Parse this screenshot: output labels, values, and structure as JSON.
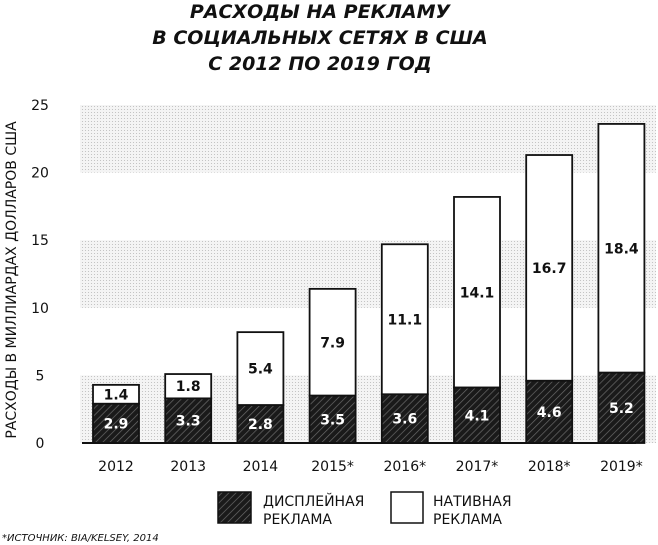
{
  "chart_data": {
    "type": "bar",
    "stacked": true,
    "title_lines": [
      "РАСХОДЫ НА РЕКЛАМУ",
      "В СОЦИАЛЬНЫХ СЕТЯХ В США",
      "С 2012 ПО 2019 ГОД"
    ],
    "ylabel": "РАСХОДЫ В МИЛЛИАРДАХ ДОЛЛАРОВ США",
    "xlabel": "",
    "ylim": [
      0,
      25
    ],
    "yticks": [
      "0",
      "5",
      "10",
      "15",
      "20",
      "25"
    ],
    "ytick_values": [
      0,
      5,
      10,
      15,
      20,
      25
    ],
    "grid": "alternating dotted bands",
    "categories": [
      "2012",
      "2013",
      "2014",
      "2015*",
      "2016*",
      "2017*",
      "2018*",
      "2019*"
    ],
    "series": [
      {
        "name": "ДИСПЛЕЙНАЯ РЕКЛАМА",
        "legend_lines": [
          "ДИСПЛЕЙНАЯ",
          "РЕКЛАМА"
        ],
        "values": [
          2.9,
          3.3,
          2.8,
          3.5,
          3.6,
          4.1,
          4.6,
          5.2
        ],
        "labels": [
          "2.9",
          "3.3",
          "2.8",
          "3.5",
          "3.6",
          "4.1",
          "4.6",
          "5.2"
        ],
        "color": "#1a1a1a"
      },
      {
        "name": "НАТИВНАЯ РЕКЛАМА",
        "legend_lines": [
          "НАТИВНАЯ",
          "РЕКЛАМА"
        ],
        "values": [
          1.4,
          1.8,
          5.4,
          7.9,
          11.1,
          14.1,
          16.7,
          18.4
        ],
        "labels": [
          "1.4",
          "1.8",
          "5.4",
          "7.9",
          "11.1",
          "14.1",
          "16.7",
          "18.4"
        ],
        "color": "#ffffff"
      }
    ],
    "legend_position": "bottom",
    "source": "*ИСТОЧНИК: BIA/KELSEY, 2014"
  }
}
